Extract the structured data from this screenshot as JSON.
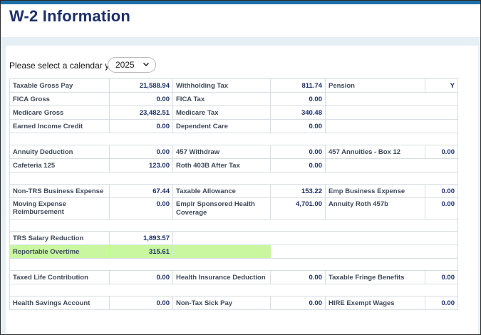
{
  "page": {
    "title": "W-2 Information"
  },
  "year_selector": {
    "label": "Please select a calendar year:",
    "selected": "2025"
  },
  "rows": {
    "taxable_gross_pay": {
      "label": "Taxable Gross Pay",
      "value": "21,588.94"
    },
    "withholding_tax": {
      "label": "Withholding Tax",
      "value": "811.74"
    },
    "pension": {
      "label": "Pension",
      "value": "Y"
    },
    "fica_gross": {
      "label": "FICA Gross",
      "value": "0.00"
    },
    "fica_tax": {
      "label": "FICA Tax",
      "value": "0.00"
    },
    "medicare_gross": {
      "label": "Medicare Gross",
      "value": "23,482.51"
    },
    "medicare_tax": {
      "label": "Medicare Tax",
      "value": "340.48"
    },
    "earned_income_credit": {
      "label": "Earned Income Credit",
      "value": "0.00"
    },
    "dependent_care": {
      "label": "Dependent Care",
      "value": "0.00"
    },
    "annuity_deduction": {
      "label": "Annuity Deduction",
      "value": "0.00"
    },
    "withdraw_457": {
      "label": "457 Withdraw",
      "value": "0.00"
    },
    "annuities_457_box12": {
      "label": "457 Annuities - Box 12",
      "value": "0.00"
    },
    "cafeteria_125": {
      "label": "Cafeteria 125",
      "value": "123.00"
    },
    "roth_403b_after_tax": {
      "label": "Roth 403B After Tax",
      "value": "0.00"
    },
    "non_trs_business_expense": {
      "label": "Non-TRS Business Expense",
      "value": "67.44"
    },
    "taxable_allowance": {
      "label": "Taxable Allowance",
      "value": "153.22"
    },
    "emp_business_expense": {
      "label": "Emp Business Expense",
      "value": "0.00"
    },
    "moving_expense_reimbursement": {
      "label": "Moving Expense Reimbursement",
      "value": "0.00"
    },
    "emplr_sponsored_health_coverage": {
      "label": "Emplr Sponsored Health Coverage",
      "value": "4,701.00"
    },
    "annuity_roth_457b": {
      "label": "Annuity Roth 457b",
      "value": "0.00"
    },
    "trs_salary_reduction": {
      "label": "TRS Salary Reduction",
      "value": "1,893.57"
    },
    "reportable_overtime": {
      "label": "Reportable Overtime",
      "value": "315.61"
    },
    "taxed_life_contribution": {
      "label": "Taxed Life Contribution",
      "value": "0.00"
    },
    "health_insurance_deduction": {
      "label": "Health Insurance Deduction",
      "value": "0.00"
    },
    "taxable_fringe_benefits": {
      "label": "Taxable Fringe Benefits",
      "value": "0.00"
    },
    "health_savings_account": {
      "label": "Health Savings Account",
      "value": "0.00"
    },
    "non_tax_sick_pay": {
      "label": "Non-Tax Sick Pay",
      "value": "0.00"
    },
    "hire_exempt_wages": {
      "label": "HIRE Exempt Wages",
      "value": "0.00"
    }
  },
  "colors": {
    "title": "#1d2f6b",
    "highlight": "#c8f7a0",
    "topbar": "#1f6fa8"
  },
  "icons": {
    "year_dropdown": "chevron-down-icon"
  }
}
